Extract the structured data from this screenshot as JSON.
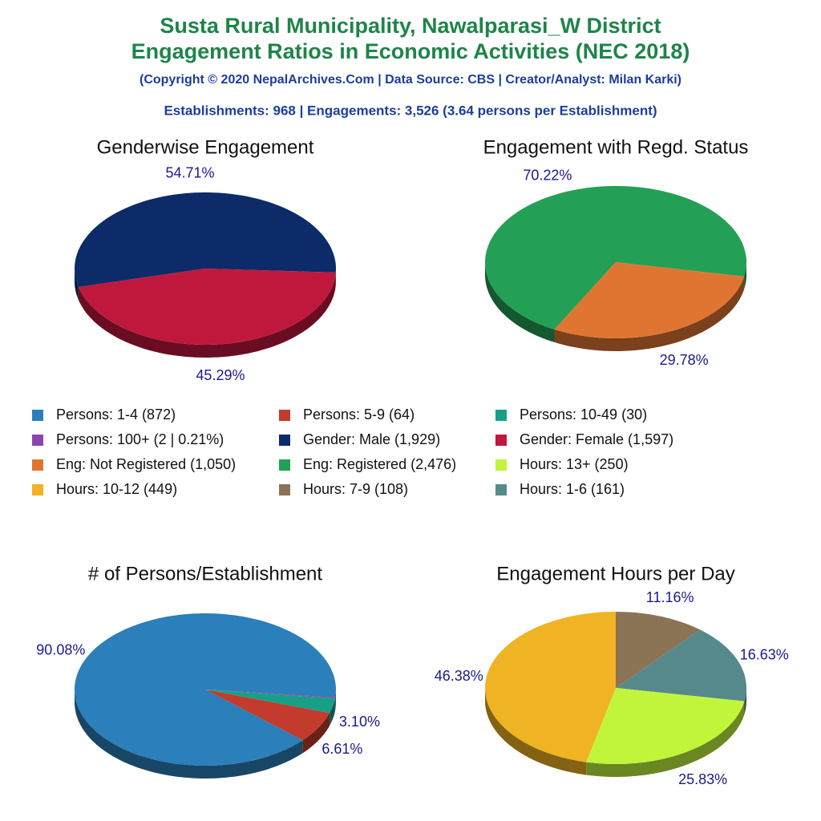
{
  "header": {
    "title": [
      "Susta Rural Municipality, Nawalparasi_W District",
      "Engagement Ratios in Economic Activities (NEC 2018)"
    ],
    "credit": "(Copyright © 2020 NepalArchives.Com | Data Source: CBS | Creator/Analyst: Milan Karki)",
    "summary": "Establishments: 968 | Engagements: 3,526 (3.64 persons per Establishment)"
  },
  "legend": [
    {
      "label": "Persons: 1-4 (872)",
      "color": "#2b7fba"
    },
    {
      "label": "Persons: 5-9 (64)",
      "color": "#c23b2c"
    },
    {
      "label": "Persons: 10-49 (30)",
      "color": "#17a085"
    },
    {
      "label": "Persons: 100+ (2 | 0.21%)",
      "color": "#8e44ad"
    },
    {
      "label": "Gender: Male (1,929)",
      "color": "#0c2b68"
    },
    {
      "label": "Gender: Female (1,597)",
      "color": "#c0183d"
    },
    {
      "label": "Eng: Not Registered (1,050)",
      "color": "#e07532"
    },
    {
      "label": "Eng: Registered (2,476)",
      "color": "#23a055"
    },
    {
      "label": "Hours: 13+ (250)",
      "color": "#c1f53c"
    },
    {
      "label": "Hours: 10-12 (449)",
      "color": "#efb323"
    },
    {
      "label": "Hours: 7-9 (108)",
      "color": "#8b7355"
    },
    {
      "label": "Hours: 1-6 (161)",
      "color": "#568a8a"
    }
  ],
  "chart_data": [
    {
      "type": "pie",
      "title": "Genderwise Engagement",
      "values": [
        54.71,
        45.29
      ],
      "value_labels": [
        "54.71%",
        "45.29%"
      ],
      "colors": [
        "#0c2b68",
        "#c0183d"
      ]
    },
    {
      "type": "pie",
      "title": "Engagement with Regd. Status",
      "values": [
        70.22,
        29.78
      ],
      "value_labels": [
        "70.22%",
        "29.78%"
      ],
      "colors": [
        "#23a055",
        "#e07532"
      ]
    },
    {
      "type": "pie",
      "title": "# of Persons/Establishment",
      "values": [
        90.08,
        6.61,
        3.1,
        0.21
      ],
      "value_labels": [
        "90.08%",
        "6.61%",
        "3.10%",
        null
      ],
      "colors": [
        "#2b7fba",
        "#c23b2c",
        "#17a085",
        "#8e44ad"
      ]
    },
    {
      "type": "pie",
      "title": "Engagement Hours per Day",
      "values": [
        11.16,
        16.63,
        25.83,
        46.38
      ],
      "value_labels": [
        "11.16%",
        "16.63%",
        "25.83%",
        "46.38%"
      ],
      "colors": [
        "#8b7355",
        "#568a8a",
        "#c1f53c",
        "#efb323"
      ]
    }
  ]
}
